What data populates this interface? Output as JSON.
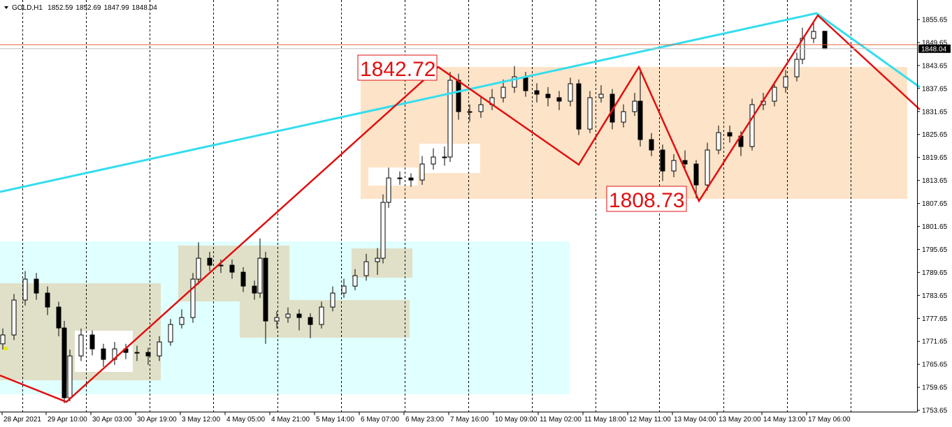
{
  "chart_data": {
    "type": "candlestick",
    "title": "GOLD,H1",
    "header_values": [
      1852.59,
      1852.69,
      1847.99,
      1848.04
    ],
    "x": [
      0,
      4,
      8,
      12,
      16,
      20,
      22,
      24,
      28,
      32,
      36,
      40,
      44,
      48,
      52,
      56,
      60,
      64,
      68,
      70,
      74,
      78,
      82,
      86,
      90,
      92,
      94,
      98,
      102,
      106,
      110,
      114,
      118,
      122,
      126,
      130,
      134,
      136,
      138,
      142,
      146,
      150,
      154,
      158,
      160,
      163,
      167,
      171,
      175,
      179,
      183,
      187,
      191,
      195,
      199,
      203,
      206,
      210,
      214,
      218,
      222,
      226,
      228,
      232,
      236,
      240,
      244,
      248,
      252,
      256,
      260,
      264,
      268,
      272,
      276,
      280,
      284,
      286,
      290,
      294
    ],
    "open": [
      1771.0,
      1773.32,
      1782.43,
      1787.89,
      1784.25,
      1780.6,
      1775.14,
      1756.92,
      1767.85,
      1773.32,
      1769.68,
      1766.94,
      1769.68,
      1768.76,
      1768.76,
      1767.85,
      1771.5,
      1776.05,
      1777.87,
      1787.89,
      1793.35,
      1791.53,
      1791.53,
      1789.71,
      1786.07,
      1784.25,
      1793.35,
      1776.96,
      1777.87,
      1778.78,
      1777.87,
      1776.05,
      1780.6,
      1784.25,
      1786.07,
      1788.8,
      1792.44,
      1793.35,
      1807.93,
      1814.3,
      1814.3,
      1813.75,
      1817.94,
      1819.77,
      1819.77,
      1839.8,
      1831.61,
      1831.61,
      1833.43,
      1835.25,
      1837.98,
      1840.71,
      1837.07,
      1836.16,
      1835.25,
      1834.34,
      1838.89,
      1827.05,
      1835.25,
      1836.16,
      1828.87,
      1831.61,
      1834.34,
      1824.32,
      1821.59,
      1816.12,
      1818.86,
      1817.94,
      1812.48,
      1821.59,
      1826.14,
      1825.23,
      1822.5,
      1833.43,
      1834.34,
      1837.98,
      1840.71,
      1845.27,
      1850.73,
      1852.59
    ],
    "high": [
      1775.0,
      1784.0,
      1790.0,
      1789.5,
      1786.0,
      1782.0,
      1777.0,
      1769.5,
      1775.0,
      1774.5,
      1771.0,
      1771.5,
      1771.0,
      1770.5,
      1770.0,
      1773.0,
      1777.5,
      1780.0,
      1789.5,
      1797.5,
      1795.0,
      1793.0,
      1793.0,
      1791.0,
      1787.5,
      1798.5,
      1795.0,
      1779.5,
      1780.5,
      1780.0,
      1779.0,
      1782.0,
      1786.0,
      1788.0,
      1790.5,
      1794.5,
      1796.0,
      1810.0,
      1817.0,
      1816.0,
      1815.5,
      1820.0,
      1822.0,
      1822.5,
      1842.0,
      1841.5,
      1833.5,
      1835.5,
      1837.5,
      1840.0,
      1843.5,
      1842.0,
      1839.0,
      1838.0,
      1837.0,
      1840.5,
      1840.0,
      1837.0,
      1838.5,
      1837.5,
      1833.5,
      1836.5,
      1843.0,
      1826.0,
      1823.0,
      1820.5,
      1821.5,
      1819.0,
      1823.5,
      1828.0,
      1828.0,
      1826.5,
      1835.0,
      1836.5,
      1839.5,
      1842.5,
      1847.0,
      1853.5,
      1855.0,
      1852.69
    ],
    "low": [
      1769.5,
      1772.0,
      1781.0,
      1782.5,
      1778.5,
      1773.0,
      1755.5,
      1756.0,
      1766.5,
      1768.0,
      1765.0,
      1765.5,
      1767.0,
      1766.5,
      1765.5,
      1766.5,
      1770.5,
      1775.0,
      1776.5,
      1786.5,
      1790.0,
      1789.5,
      1788.0,
      1784.5,
      1782.5,
      1783.0,
      1771.0,
      1775.0,
      1776.5,
      1774.5,
      1772.5,
      1775.0,
      1779.5,
      1783.0,
      1785.0,
      1787.5,
      1789.0,
      1792.0,
      1806.5,
      1812.5,
      1812.0,
      1812.5,
      1816.5,
      1817.5,
      1818.5,
      1829.5,
      1829.0,
      1830.0,
      1832.0,
      1834.0,
      1836.5,
      1835.5,
      1834.0,
      1833.0,
      1832.0,
      1833.0,
      1825.5,
      1826.0,
      1834.0,
      1827.0,
      1827.5,
      1830.5,
      1822.5,
      1820.0,
      1813.5,
      1814.5,
      1816.0,
      1809.0,
      1811.0,
      1820.5,
      1823.5,
      1820.0,
      1821.5,
      1832.0,
      1833.0,
      1836.5,
      1839.5,
      1844.0,
      1849.5,
      1847.99
    ],
    "close": [
      1773.32,
      1782.43,
      1787.89,
      1784.25,
      1780.6,
      1775.14,
      1756.92,
      1767.85,
      1773.32,
      1769.68,
      1766.94,
      1769.68,
      1768.76,
      1768.76,
      1767.85,
      1771.5,
      1776.05,
      1777.87,
      1787.89,
      1793.35,
      1791.53,
      1791.53,
      1789.71,
      1786.07,
      1784.25,
      1793.35,
      1776.96,
      1777.87,
      1778.78,
      1777.87,
      1776.05,
      1780.6,
      1784.25,
      1786.07,
      1788.8,
      1792.44,
      1793.35,
      1807.93,
      1814.3,
      1814.3,
      1813.75,
      1817.94,
      1819.77,
      1819.77,
      1839.8,
      1831.61,
      1831.61,
      1833.43,
      1835.25,
      1837.98,
      1840.71,
      1837.07,
      1836.16,
      1835.25,
      1834.34,
      1838.89,
      1827.05,
      1835.25,
      1836.16,
      1828.87,
      1831.61,
      1834.34,
      1824.32,
      1821.59,
      1816.12,
      1818.86,
      1817.94,
      1812.48,
      1821.59,
      1826.14,
      1825.23,
      1822.5,
      1833.43,
      1834.34,
      1837.98,
      1840.71,
      1845.27,
      1850.73,
      1852.55,
      1848.04
    ],
    "xlim": [
      -1,
      327
    ],
    "ylim": [
      1753.3,
      1860.75
    ],
    "yticks": [
      1753.65,
      1759.65,
      1765.65,
      1771.65,
      1777.65,
      1783.65,
      1789.65,
      1795.65,
      1801.65,
      1807.65,
      1813.65,
      1819.65,
      1825.65,
      1831.65,
      1837.65,
      1843.65,
      1849.65,
      1855.65
    ],
    "xticks": [
      {
        "value": -0.25,
        "label": "28 Apr 2021"
      },
      {
        "value": 15.5,
        "label": "29 Apr 10:00"
      },
      {
        "value": 31.5,
        "label": "30 Apr 03:00"
      },
      {
        "value": 47.5,
        "label": "30 Apr 19:00"
      },
      {
        "value": 63.5,
        "label": "3 May 12:00"
      },
      {
        "value": 79.5,
        "label": "4 May 05:00"
      },
      {
        "value": 95.5,
        "label": "4 May 21:00"
      },
      {
        "value": 111.5,
        "label": "5 May 14:00"
      },
      {
        "value": 127.5,
        "label": "6 May 07:00"
      },
      {
        "value": 143.5,
        "label": "6 May 23:00"
      },
      {
        "value": 159.5,
        "label": "7 May 16:00"
      },
      {
        "value": 175.5,
        "label": "10 May 09:00"
      },
      {
        "value": 191.5,
        "label": "11 May 02:00"
      },
      {
        "value": 207.5,
        "label": "11 May 18:00"
      },
      {
        "value": 223.5,
        "label": "12 May 11:00"
      },
      {
        "value": 239.5,
        "label": "13 May 04:00"
      },
      {
        "value": 255.5,
        "label": "13 May 20:00"
      },
      {
        "value": 271.5,
        "label": "14 May 13:00"
      },
      {
        "value": 287.5,
        "label": "17 May 06:00"
      }
    ],
    "last_price": 1848.04,
    "annotations": [
      1842.72,
      1808.73
    ]
  }
}
